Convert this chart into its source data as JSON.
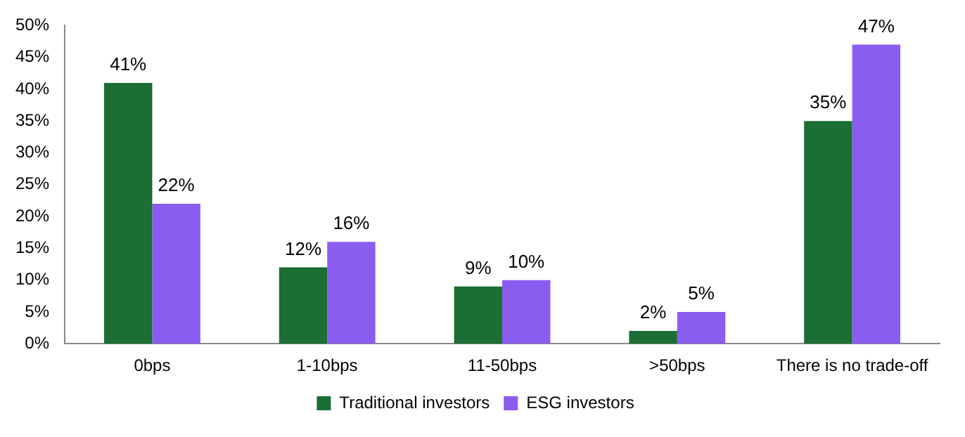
{
  "chart_data": {
    "type": "bar",
    "categories": [
      "0bps",
      "1-10bps",
      "11-50bps",
      ">50bps",
      "There is no trade-off"
    ],
    "series": [
      {
        "name": "Traditional investors",
        "color": "#1b6e34",
        "values": [
          41,
          12,
          9,
          2,
          35
        ],
        "value_labels": [
          "41%",
          "12%",
          "9%",
          "2%",
          "35%"
        ]
      },
      {
        "name": "ESG investors",
        "color": "#8b5cf0",
        "values": [
          22,
          16,
          10,
          5,
          47
        ],
        "value_labels": [
          "22%",
          "16%",
          "10%",
          "5%",
          "47%"
        ]
      }
    ],
    "ylim": [
      0,
      50
    ],
    "yticks": [
      {
        "value": 0,
        "label": "0%"
      },
      {
        "value": 5,
        "label": "5%"
      },
      {
        "value": 10,
        "label": "10%"
      },
      {
        "value": 15,
        "label": "15%"
      },
      {
        "value": 20,
        "label": "20%"
      },
      {
        "value": 25,
        "label": "25%"
      },
      {
        "value": 30,
        "label": "30%"
      },
      {
        "value": 35,
        "label": "35%"
      },
      {
        "value": 40,
        "label": "40%"
      },
      {
        "value": 45,
        "label": "45%"
      },
      {
        "value": 50,
        "label": "50%"
      }
    ],
    "grid": false,
    "legend": "bottom"
  }
}
